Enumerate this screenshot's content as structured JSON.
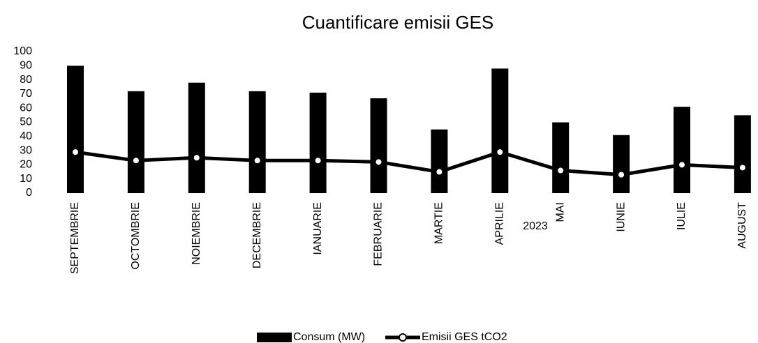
{
  "chart_data": {
    "type": "combo",
    "title": "Cuantificare emisii GES",
    "x_label": "2023",
    "categories": [
      "SEPTEMBRIE",
      "OCTOMBRIE",
      "NOIEMBRIE",
      "DECEMBRIE",
      "IANUARIE",
      "FEBRUARIE",
      "MARTIE",
      "APRILIE",
      "MAI",
      "IUNIE",
      "IULIE",
      "AUGUST"
    ],
    "series": [
      {
        "name": "Consum (MW)",
        "type": "bar",
        "color": "#000000",
        "values": [
          90,
          72,
          78,
          72,
          71,
          67,
          45,
          88,
          50,
          41,
          61,
          55
        ]
      },
      {
        "name": "Emisii GES tCO2",
        "type": "line",
        "color": "#000000",
        "values": [
          29,
          23,
          25,
          23,
          23,
          22,
          15,
          29,
          16,
          13,
          20,
          18
        ]
      }
    ],
    "ylim": [
      0,
      100
    ],
    "yticks": [
      0,
      10,
      20,
      30,
      40,
      50,
      60,
      70,
      80,
      90,
      100
    ],
    "grid": false,
    "legend": "bottom"
  }
}
